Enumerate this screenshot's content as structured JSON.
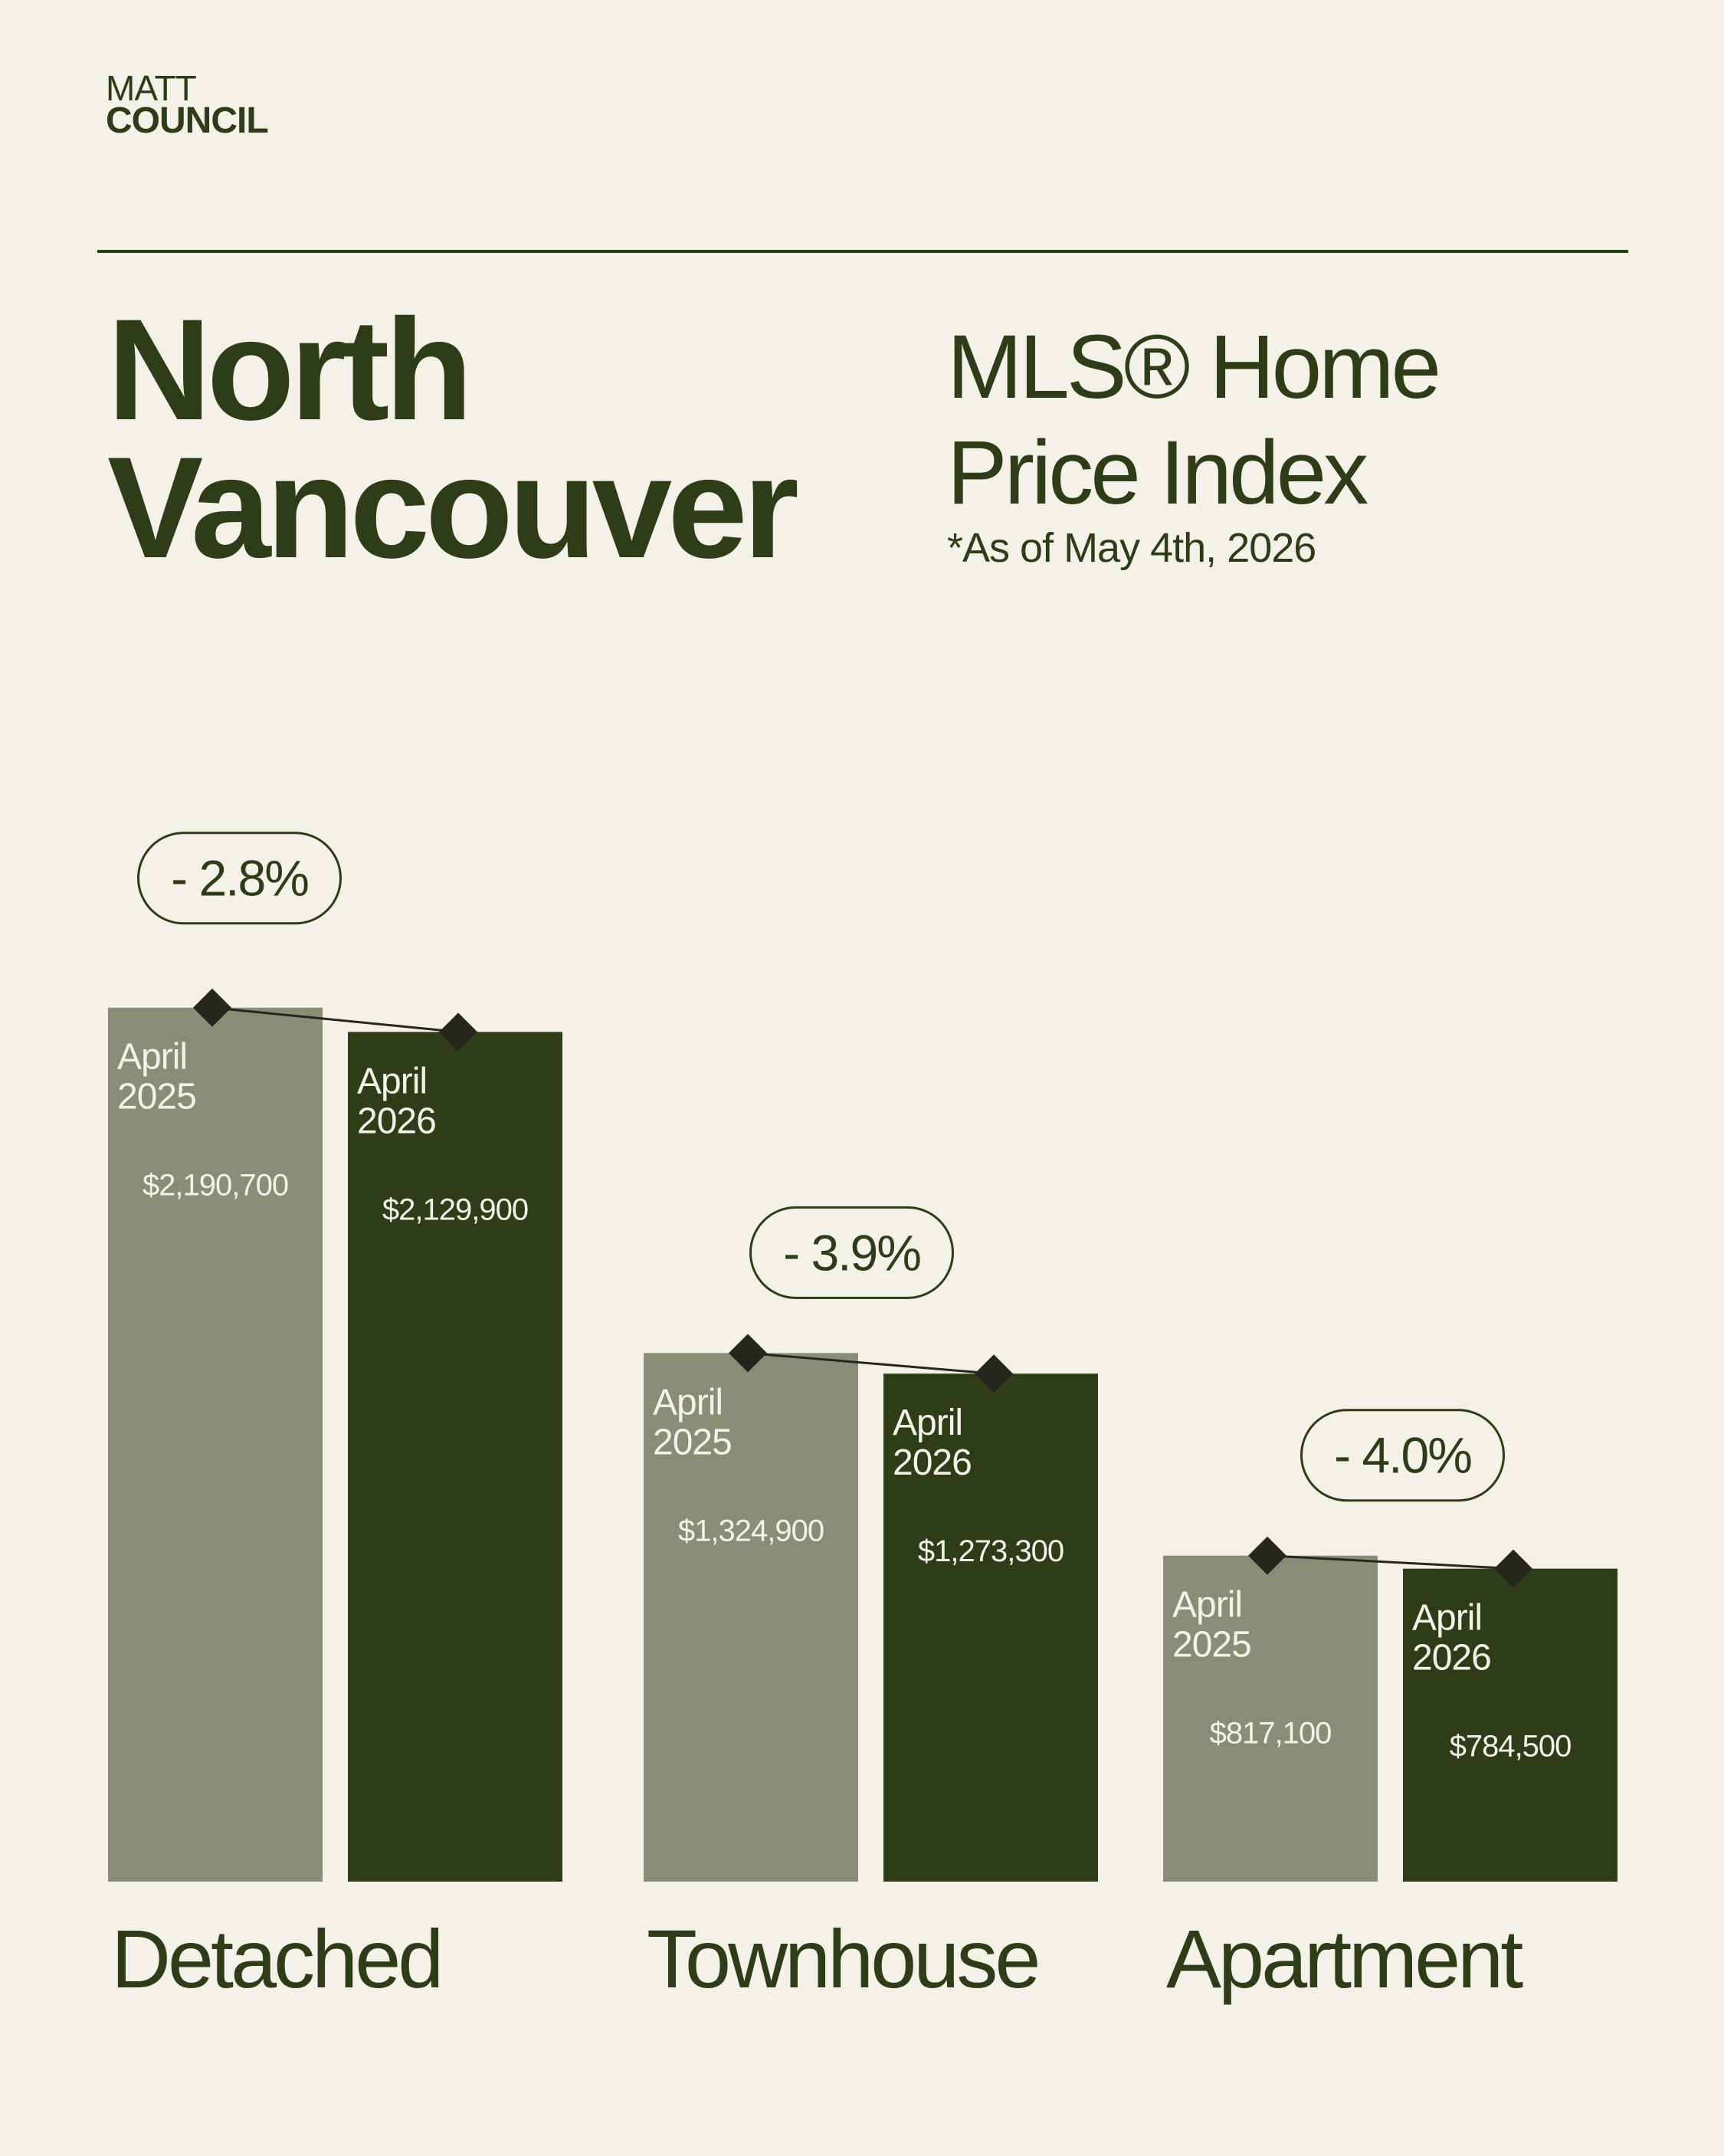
{
  "brand": {
    "line1": "MATT",
    "line2": "COUNCIL"
  },
  "title": {
    "line1": "North",
    "line2": "Vancouver"
  },
  "subtitle": {
    "line1": "MLS® Home",
    "line2": "Price Index"
  },
  "note": "*As of May 4th, 2026",
  "colors": {
    "background": "#f4f2e8",
    "text": "#2e3d17",
    "bar_2025": "#898d75",
    "bar_2026": "#2e3d17",
    "marker": "#26261e"
  },
  "chart_data": {
    "type": "bar",
    "categories": [
      "Detached",
      "Townhouse",
      "Apartment"
    ],
    "series": [
      {
        "name": "April 2025",
        "label_line1": "April",
        "label_line2": "2025",
        "values": [
          2190700,
          1324900,
          817100
        ],
        "value_labels": [
          "$2,190,700",
          "$1,324,900",
          "$817,100"
        ]
      },
      {
        "name": "April 2026",
        "label_line1": "April",
        "label_line2": "2026",
        "values": [
          2129900,
          1273300,
          784500
        ],
        "value_labels": [
          "$2,129,900",
          "$1,273,300",
          "$784,500"
        ]
      }
    ],
    "changes": [
      "- 2.8%",
      "- 3.9%",
      "- 4.0%"
    ],
    "legend": "none",
    "grid": false
  }
}
